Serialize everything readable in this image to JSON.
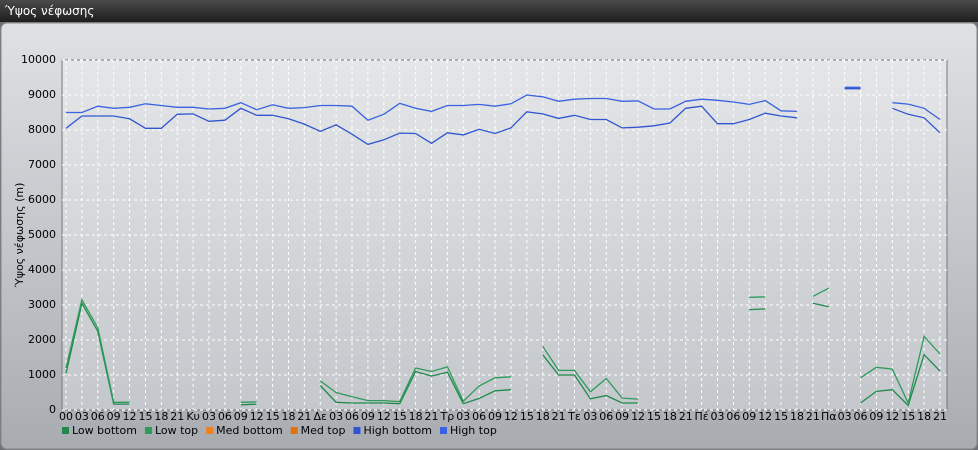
{
  "chart_data": {
    "type": "line",
    "title": "Ύψος νέφωσης",
    "y_label": "Ύψος νέφωσης (m)",
    "categories": [
      "00",
      "03",
      "06",
      "09",
      "12",
      "15",
      "18",
      "21",
      "Κυ",
      "03",
      "06",
      "09",
      "12",
      "15",
      "18",
      "21",
      "Δε",
      "03",
      "06",
      "09",
      "12",
      "15",
      "18",
      "21",
      "Τρ",
      "03",
      "06",
      "09",
      "12",
      "15",
      "18",
      "21",
      "Τε",
      "03",
      "06",
      "09",
      "12",
      "15",
      "18",
      "21",
      "Πέ",
      "03",
      "06",
      "09",
      "12",
      "15",
      "18",
      "21",
      "Πα",
      "03",
      "06",
      "09",
      "12",
      "15",
      "18",
      "21"
    ],
    "ylim": [
      0,
      10000
    ],
    "yticks": [
      0,
      1000,
      2000,
      3000,
      4000,
      5000,
      6000,
      7000,
      8000,
      9000,
      10000
    ],
    "grid": true,
    "legend": "bottom",
    "series": [
      {
        "name": "Low bottom",
        "color": "#1f8a4c",
        "values": [
          1050,
          3050,
          2250,
          170,
          170,
          null,
          null,
          null,
          null,
          null,
          null,
          150,
          170,
          null,
          null,
          null,
          700,
          220,
          200,
          200,
          200,
          180,
          1100,
          970,
          1080,
          180,
          330,
          550,
          580,
          null,
          1580,
          1000,
          1000,
          320,
          410,
          200,
          200,
          null,
          null,
          null,
          null,
          null,
          null,
          2870,
          2890,
          null,
          null,
          3050,
          2950,
          null,
          200,
          530,
          580,
          130,
          1580,
          1110
        ]
      },
      {
        "name": "Low top",
        "color": "#2e9a5c",
        "values": [
          1200,
          3150,
          2350,
          220,
          220,
          null,
          null,
          null,
          null,
          null,
          null,
          220,
          230,
          null,
          null,
          null,
          830,
          500,
          380,
          270,
          270,
          240,
          1200,
          1100,
          1230,
          250,
          690,
          920,
          950,
          null,
          1820,
          1130,
          1130,
          520,
          900,
          340,
          310,
          null,
          null,
          null,
          null,
          null,
          null,
          3220,
          3230,
          null,
          null,
          3250,
          3480,
          null,
          920,
          1220,
          1170,
          200,
          2100,
          1600
        ]
      },
      {
        "name": "Med bottom",
        "color": "#f0821e",
        "values": [
          null,
          null,
          null,
          null,
          null,
          null,
          null,
          null,
          null,
          null,
          null,
          null,
          null,
          null,
          null,
          null,
          null,
          null,
          null,
          null,
          null,
          null,
          null,
          null,
          null,
          null,
          null,
          null,
          null,
          null,
          null,
          null,
          null,
          null,
          null,
          null,
          null,
          null,
          null,
          null,
          null,
          null,
          null,
          null,
          null,
          null,
          null,
          null,
          null,
          null,
          null,
          null,
          null,
          null,
          null,
          null
        ]
      },
      {
        "name": "Med top",
        "color": "#e07010",
        "values": [
          null,
          null,
          null,
          null,
          null,
          null,
          null,
          null,
          null,
          null,
          null,
          null,
          null,
          null,
          null,
          null,
          null,
          null,
          null,
          null,
          null,
          null,
          null,
          null,
          null,
          null,
          null,
          null,
          null,
          null,
          null,
          null,
          null,
          null,
          null,
          null,
          null,
          null,
          null,
          null,
          null,
          null,
          null,
          null,
          null,
          null,
          null,
          null,
          null,
          null,
          null,
          null,
          null,
          null,
          null,
          null
        ]
      },
      {
        "name": "High bottom",
        "color": "#2f56d0",
        "values": [
          8050,
          8400,
          8400,
          8400,
          8320,
          8050,
          8050,
          8450,
          8460,
          8250,
          8280,
          8620,
          8420,
          8420,
          8320,
          8170,
          7960,
          8150,
          7880,
          7590,
          7720,
          7910,
          7900,
          7620,
          7920,
          7860,
          8020,
          7900,
          8060,
          8520,
          8460,
          8330,
          8420,
          8300,
          8300,
          8060,
          8080,
          8120,
          8200,
          8620,
          8680,
          8180,
          8180,
          8300,
          8480,
          8400,
          8350,
          null,
          null,
          9180,
          9180,
          null,
          8620,
          8450,
          8350,
          7920
        ]
      },
      {
        "name": "High top",
        "color": "#3a62e0",
        "values": [
          8500,
          8500,
          8680,
          8620,
          8650,
          8750,
          8700,
          8650,
          8650,
          8600,
          8620,
          8780,
          8580,
          8720,
          8620,
          8640,
          8700,
          8700,
          8680,
          8280,
          8450,
          8760,
          8620,
          8530,
          8700,
          8700,
          8730,
          8680,
          8750,
          9000,
          8950,
          8820,
          8880,
          8900,
          8900,
          8820,
          8830,
          8600,
          8600,
          8820,
          8880,
          8850,
          8800,
          8730,
          8840,
          8550,
          8530,
          null,
          null,
          9220,
          9220,
          null,
          8780,
          8740,
          8620,
          8300
        ]
      }
    ]
  }
}
